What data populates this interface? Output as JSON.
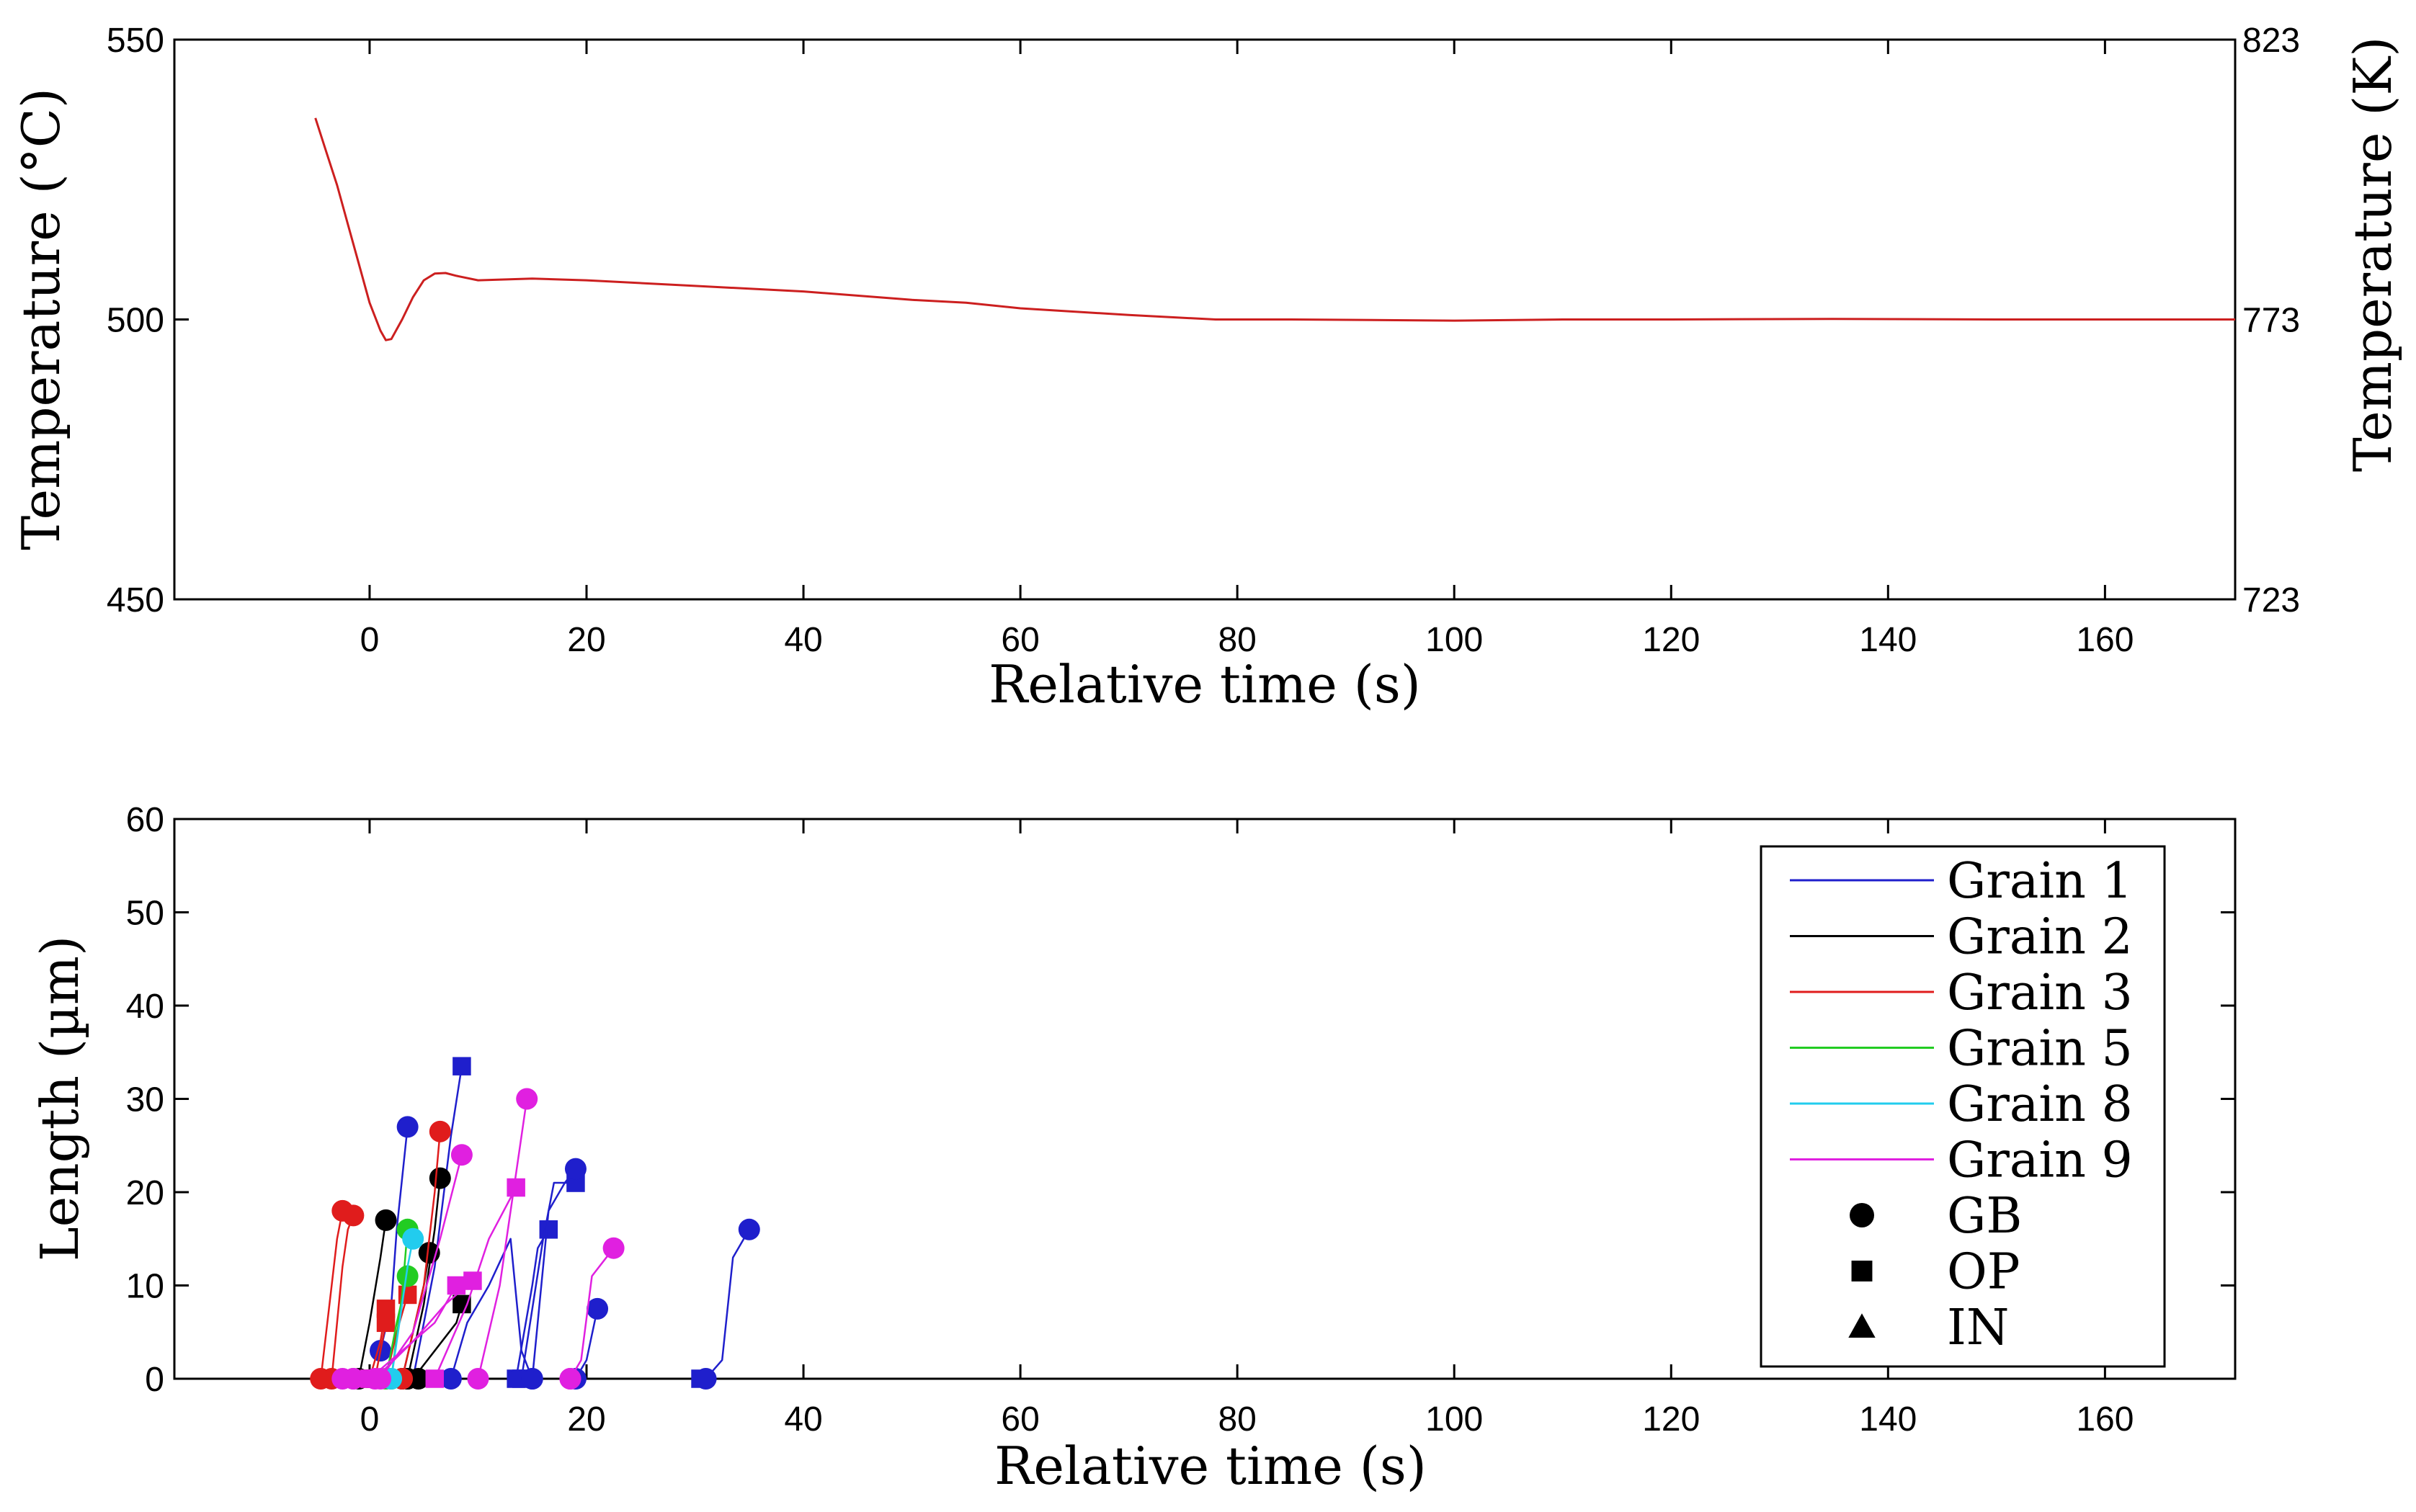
{
  "chart_data": [
    {
      "type": "line",
      "panel": "temperature",
      "xlabel": "Relative time (s)",
      "ylabel": "Temperature (°C)",
      "y2label": "Temperature (K)",
      "xlim": [
        -18,
        172
      ],
      "ylim": [
        450,
        550
      ],
      "xticks": [
        0,
        20,
        40,
        60,
        80,
        100,
        120,
        140,
        160
      ],
      "yticks": [
        450,
        500,
        550
      ],
      "y2ticks": [
        {
          "value": 450,
          "label": "723"
        },
        {
          "value": 500,
          "label": "773"
        },
        {
          "value": 550,
          "label": "823"
        }
      ],
      "series": [
        {
          "name": "Temperature",
          "color": "#cc1f1f",
          "x": [
            -5,
            -4,
            -3,
            -2,
            -1,
            0,
            1,
            1.5,
            2,
            3,
            4,
            5,
            6,
            7,
            8,
            10,
            15,
            20,
            30,
            40,
            50,
            55,
            60,
            70,
            78,
            85,
            100,
            110,
            120,
            135,
            150,
            172
          ],
          "y": [
            536,
            530,
            524,
            517,
            510,
            503,
            498,
            496.3,
            496.5,
            500,
            504,
            507,
            508.2,
            508.3,
            507.8,
            507,
            507.3,
            507,
            506,
            505,
            503.5,
            503,
            502,
            500.8,
            500,
            500,
            499.8,
            500,
            500,
            500.1,
            500,
            500
          ]
        }
      ]
    },
    {
      "type": "line",
      "panel": "length",
      "xlabel": "Relative time (s)",
      "ylabel": "Length (µm)",
      "xlim": [
        -18,
        172
      ],
      "ylim": [
        0,
        60
      ],
      "xticks": [
        0,
        20,
        40,
        60,
        80,
        100,
        120,
        140,
        160
      ],
      "yticks": [
        0,
        10,
        20,
        30,
        40,
        50,
        60
      ],
      "legend": {
        "position": "top-right",
        "entries": [
          {
            "label": "Grain 1",
            "kind": "line",
            "color": "#1f1fcc"
          },
          {
            "label": "Grain 2",
            "kind": "line",
            "color": "#000000"
          },
          {
            "label": "Grain 3",
            "kind": "line",
            "color": "#e01c1c"
          },
          {
            "label": "Grain 5",
            "kind": "line",
            "color": "#22cc22"
          },
          {
            "label": "Grain 8",
            "kind": "line",
            "color": "#22ccee"
          },
          {
            "label": "Grain 9",
            "kind": "line",
            "color": "#e020e0"
          },
          {
            "label": "GB",
            "kind": "marker",
            "marker": "circle",
            "color": "#000000"
          },
          {
            "label": "OP",
            "kind": "marker",
            "marker": "square",
            "color": "#000000"
          },
          {
            "label": "IN",
            "kind": "marker",
            "marker": "triangle",
            "color": "#000000"
          }
        ]
      },
      "series": [
        {
          "name": "Grain 1",
          "color": "#1f1fcc",
          "marker": "circle",
          "x": [
            1,
            2,
            2.5,
            3.5
          ],
          "y": [
            3,
            8,
            16,
            27
          ]
        },
        {
          "name": "Grain 1",
          "color": "#1f1fcc",
          "marker": "square",
          "x": [
            4,
            6,
            7.5,
            8.5
          ],
          "y": [
            0,
            12,
            26,
            33.5
          ]
        },
        {
          "name": "Grain 1",
          "color": "#1f1fcc",
          "marker": "circle",
          "x": [
            7.5,
            9,
            11,
            13,
            14,
            15
          ],
          "y": [
            0,
            6,
            10,
            15,
            3,
            0
          ]
        },
        {
          "name": "Grain 1",
          "color": "#1f1fcc",
          "marker": "square",
          "x": [
            13.5,
            15,
            15.5,
            16.5
          ],
          "y": [
            0,
            10,
            14,
            16
          ]
        },
        {
          "name": "Grain 1",
          "color": "#1f1fcc",
          "marker": "square",
          "x": [
            14,
            16,
            17,
            18,
            19
          ],
          "y": [
            0,
            15,
            21,
            21,
            21
          ]
        },
        {
          "name": "Grain 1",
          "color": "#1f1fcc",
          "marker": "circle",
          "x": [
            15,
            16.5,
            18,
            19
          ],
          "y": [
            0,
            18,
            21,
            22.5
          ]
        },
        {
          "name": "Grain 1",
          "color": "#1f1fcc",
          "marker": "circle",
          "x": [
            19,
            20,
            21
          ],
          "y": [
            0,
            2,
            7.5
          ]
        },
        {
          "name": "Grain 1",
          "color": "#1f1fcc",
          "marker": "square",
          "x": [
            30.5
          ],
          "y": [
            0
          ]
        },
        {
          "name": "Grain 1",
          "color": "#1f1fcc",
          "marker": "circle",
          "x": [
            31,
            32.5,
            33.5,
            35
          ],
          "y": [
            0,
            2,
            13,
            16
          ]
        },
        {
          "name": "Grain 2",
          "color": "#000000",
          "marker": "circle",
          "x": [
            -1,
            0,
            1,
            1.5
          ],
          "y": [
            0,
            6,
            13,
            17
          ]
        },
        {
          "name": "Grain 2",
          "color": "#000000",
          "marker": "circle",
          "x": [
            3.5,
            5,
            6,
            6.5
          ],
          "y": [
            0,
            8,
            16,
            21.5
          ]
        },
        {
          "name": "Grain 2",
          "color": "#000000",
          "marker": "circle",
          "x": [
            3,
            4,
            5,
            5.5
          ],
          "y": [
            0,
            5,
            10,
            13.5
          ]
        },
        {
          "name": "Grain 2",
          "color": "#000000",
          "marker": "square",
          "x": [
            4,
            6,
            8,
            8.5
          ],
          "y": [
            0,
            3,
            6,
            8
          ]
        },
        {
          "name": "Grain 2",
          "color": "#000000",
          "marker": "circle",
          "x": [
            3.5,
            4.5
          ],
          "y": [
            0,
            0
          ]
        },
        {
          "name": "Grain 3",
          "color": "#e01c1c",
          "marker": "circle",
          "x": [
            -4.5,
            -3.5,
            -3,
            -2.5
          ],
          "y": [
            0,
            10,
            15,
            18
          ]
        },
        {
          "name": "Grain 3",
          "color": "#e01c1c",
          "marker": "circle",
          "x": [
            -3.5,
            -2.5,
            -2,
            -1.5
          ],
          "y": [
            0,
            12,
            16,
            17.5
          ]
        },
        {
          "name": "Grain 3",
          "color": "#e01c1c",
          "marker": "square",
          "x": [
            0,
            1,
            1.5
          ],
          "y": [
            0,
            4,
            7.5
          ]
        },
        {
          "name": "Grain 3",
          "color": "#e01c1c",
          "marker": "square",
          "x": [
            0.5,
            1,
            1.5
          ],
          "y": [
            0,
            3,
            6
          ]
        },
        {
          "name": "Grain 3",
          "color": "#e01c1c",
          "marker": "square",
          "x": [
            1.5,
            2.5,
            3.5
          ],
          "y": [
            0,
            5,
            9
          ]
        },
        {
          "name": "Grain 3",
          "color": "#e01c1c",
          "marker": "circle",
          "x": [
            3,
            5,
            6,
            6.5
          ],
          "y": [
            0,
            10,
            20,
            26.5
          ]
        },
        {
          "name": "Grain 5",
          "color": "#22cc22",
          "marker": "circle",
          "x": [
            1.5,
            2.5,
            3.5
          ],
          "y": [
            0,
            6,
            11
          ]
        },
        {
          "name": "Grain 5",
          "color": "#22cc22",
          "marker": "circle",
          "x": [
            2,
            3,
            3.5
          ],
          "y": [
            0,
            9,
            16
          ]
        },
        {
          "name": "Grain 8",
          "color": "#22ccee",
          "marker": "circle",
          "x": [
            2,
            3,
            3.5,
            4
          ],
          "y": [
            0,
            8,
            12,
            15
          ]
        },
        {
          "name": "Grain 9",
          "color": "#e020e0",
          "marker": "circle",
          "x": [
            -2.5,
            -1.5
          ],
          "y": [
            0,
            0
          ]
        },
        {
          "name": "Grain 9",
          "color": "#e020e0",
          "marker": "circle",
          "x": [
            -1.5,
            0.5
          ],
          "y": [
            0,
            0
          ]
        },
        {
          "name": "Grain 9",
          "color": "#e020e0",
          "marker": "square",
          "x": [
            0,
            3,
            6,
            8
          ],
          "y": [
            0,
            3,
            6,
            10
          ]
        },
        {
          "name": "Grain 9",
          "color": "#e020e0",
          "marker": "square",
          "x": [
            0.5,
            4,
            7,
            9.5
          ],
          "y": [
            0,
            4,
            8,
            10.5
          ]
        },
        {
          "name": "Grain 9",
          "color": "#e020e0",
          "marker": "circle",
          "x": [
            1,
            4,
            6.5,
            8.5
          ],
          "y": [
            0,
            5,
            15,
            24
          ]
        },
        {
          "name": "Grain 9",
          "color": "#e020e0",
          "marker": "square",
          "x": [
            6,
            9,
            11,
            13.5
          ],
          "y": [
            0,
            8,
            15,
            20.5
          ]
        },
        {
          "name": "Grain 9",
          "color": "#e020e0",
          "marker": "circle",
          "x": [
            10,
            12,
            14,
            14.5
          ],
          "y": [
            0,
            10,
            26,
            30
          ]
        },
        {
          "name": "Grain 9",
          "color": "#e020e0",
          "marker": "circle",
          "x": [
            18.5,
            19.5,
            20.5,
            22.5
          ],
          "y": [
            0,
            2,
            11,
            14
          ]
        },
        {
          "name": "Grain 9",
          "color": "#e020e0",
          "marker": "circle",
          "x": [
            18.5
          ],
          "y": [
            0
          ]
        }
      ]
    }
  ]
}
